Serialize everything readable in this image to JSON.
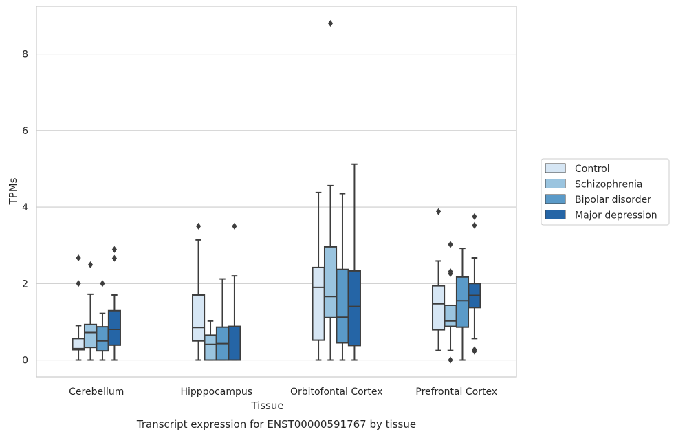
{
  "chart_data": {
    "type": "box",
    "xlabel": "Tissue",
    "ylabel": "TPMs",
    "caption": "Transcript expression for ENST00000591767 by tissue",
    "categories": [
      "Cerebellum",
      "Hipppocampus",
      "Orbitofontal Cortex",
      "Prefrontal Cortex"
    ],
    "yticks": [
      0,
      2,
      4,
      6,
      8
    ],
    "ylim": [
      -0.44,
      9.25
    ],
    "grid": true,
    "legend_position": "right",
    "series": [
      {
        "name": "Control",
        "color": "#d6e6f4",
        "boxes": [
          {
            "whislo": 0.0,
            "q1": 0.27,
            "med": 0.3,
            "q3": 0.56,
            "whishi": 0.9,
            "fliers": [
              2.0,
              2.67
            ]
          },
          {
            "whislo": 0.0,
            "q1": 0.5,
            "med": 0.85,
            "q3": 1.7,
            "whishi": 3.14,
            "fliers": [
              3.5
            ]
          },
          {
            "whislo": 0.0,
            "q1": 0.52,
            "med": 1.9,
            "q3": 2.42,
            "whishi": 4.38,
            "fliers": []
          },
          {
            "whislo": 0.25,
            "q1": 0.79,
            "med": 1.47,
            "q3": 1.94,
            "whishi": 2.59,
            "fliers": [
              3.88
            ]
          }
        ]
      },
      {
        "name": "Schizophrenia",
        "color": "#9ac4df",
        "boxes": [
          {
            "whislo": 0.0,
            "q1": 0.33,
            "med": 0.72,
            "q3": 0.93,
            "whishi": 1.72,
            "fliers": [
              2.49
            ]
          },
          {
            "whislo": 0.0,
            "q1": 0.0,
            "med": 0.41,
            "q3": 0.65,
            "whishi": 1.02,
            "fliers": []
          },
          {
            "whislo": 0.0,
            "q1": 1.11,
            "med": 1.66,
            "q3": 2.96,
            "whishi": 4.56,
            "fliers": [
              8.8
            ]
          },
          {
            "whislo": 0.25,
            "q1": 0.88,
            "med": 1.02,
            "q3": 1.43,
            "whishi": 1.43,
            "fliers": [
              0.0,
              2.26,
              2.31,
              3.02
            ]
          }
        ]
      },
      {
        "name": "Bipolar disorder",
        "color": "#5a9ac8",
        "boxes": [
          {
            "whislo": 0.0,
            "q1": 0.24,
            "med": 0.5,
            "q3": 0.87,
            "whishi": 1.22,
            "fliers": [
              2.0
            ]
          },
          {
            "whislo": 0.0,
            "q1": 0.0,
            "med": 0.43,
            "q3": 0.86,
            "whishi": 2.12,
            "fliers": []
          },
          {
            "whislo": 0.0,
            "q1": 0.45,
            "med": 1.12,
            "q3": 2.37,
            "whishi": 4.35,
            "fliers": []
          },
          {
            "whislo": 0.0,
            "q1": 0.86,
            "med": 1.55,
            "q3": 2.17,
            "whishi": 2.92,
            "fliers": []
          }
        ]
      },
      {
        "name": "Major depression",
        "color": "#2565a6",
        "boxes": [
          {
            "whislo": 0.0,
            "q1": 0.39,
            "med": 0.8,
            "q3": 1.29,
            "whishi": 1.7,
            "fliers": [
              2.66,
              2.89
            ]
          },
          {
            "whislo": 0.0,
            "q1": 0.0,
            "med": 0.0,
            "q3": 0.88,
            "whishi": 2.2,
            "fliers": [
              3.5
            ]
          },
          {
            "whislo": 0.0,
            "q1": 0.38,
            "med": 1.4,
            "q3": 2.33,
            "whishi": 5.12,
            "fliers": []
          },
          {
            "whislo": 0.56,
            "q1": 1.37,
            "med": 1.69,
            "q3": 2.0,
            "whishi": 2.67,
            "fliers": [
              0.23,
              0.27,
              3.52,
              3.75
            ]
          }
        ]
      }
    ]
  }
}
